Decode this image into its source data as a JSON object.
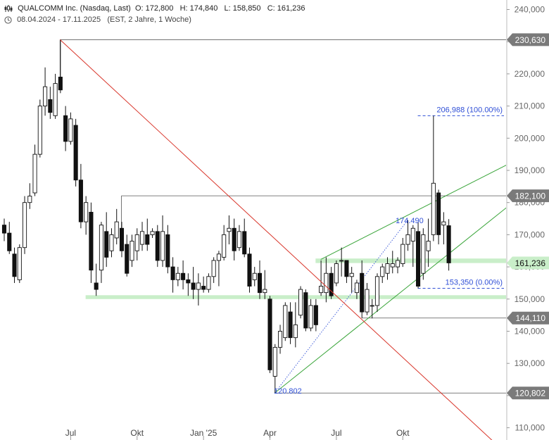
{
  "header": {
    "symbol": "QUALCOMM Inc. (Nasdaq, Last)",
    "ohlc": "O: 172,800   H: 174,840   L: 158,850   C: 161,236",
    "period": "08.04.2024 - 17.11.2025",
    "meta": "(EST, 2 Jahre, 1 Woche)"
  },
  "chart_data": {
    "type": "candlestick",
    "ylim": [
      105000,
      245000
    ],
    "y_ticks": [
      {
        "value": 240000,
        "label": "240,000"
      },
      {
        "value": 230000,
        "label": "230,000"
      },
      {
        "value": 220000,
        "label": "220,000"
      },
      {
        "value": 210000,
        "label": "210,000"
      },
      {
        "value": 200000,
        "label": "200,000"
      },
      {
        "value": 190000,
        "label": "190,000"
      },
      {
        "value": 180000,
        "label": "180,000"
      },
      {
        "value": 170000,
        "label": "170,000"
      },
      {
        "value": 160000,
        "label": "160,000"
      },
      {
        "value": 150000,
        "label": "150,000"
      },
      {
        "value": 140000,
        "label": "140,000"
      },
      {
        "value": 130000,
        "label": "130,000"
      },
      {
        "value": 120000,
        "label": "120,000"
      },
      {
        "value": 110000,
        "label": "110,000"
      }
    ],
    "x_ticks": [
      {
        "week": 13,
        "label": "Jul"
      },
      {
        "week": 26,
        "label": "Okt"
      },
      {
        "week": 39,
        "label": "Jan '25"
      },
      {
        "week": 52,
        "label": "Apr"
      },
      {
        "week": 65,
        "label": "Jul"
      },
      {
        "week": 78,
        "label": "Okt"
      }
    ],
    "n_weeks": 100,
    "candles": [
      {
        "o": 173000,
        "h": 175000,
        "l": 168000,
        "c": 170500
      },
      {
        "o": 170500,
        "h": 174000,
        "l": 164000,
        "c": 165000
      },
      {
        "o": 164000,
        "h": 166000,
        "l": 155000,
        "c": 157000
      },
      {
        "o": 156000,
        "h": 167000,
        "l": 155000,
        "c": 166000
      },
      {
        "o": 166000,
        "h": 182000,
        "l": 164000,
        "c": 180000
      },
      {
        "o": 180000,
        "h": 186000,
        "l": 178000,
        "c": 182000
      },
      {
        "o": 183000,
        "h": 198000,
        "l": 182000,
        "c": 195000
      },
      {
        "o": 195000,
        "h": 212000,
        "l": 194000,
        "c": 210000
      },
      {
        "o": 210000,
        "h": 222000,
        "l": 207000,
        "c": 216000
      },
      {
        "o": 212000,
        "h": 216000,
        "l": 206000,
        "c": 208000
      },
      {
        "o": 207000,
        "h": 220000,
        "l": 206000,
        "c": 217000
      },
      {
        "o": 219000,
        "h": 230630,
        "l": 214000,
        "c": 215000
      },
      {
        "o": 207000,
        "h": 210000,
        "l": 196000,
        "c": 199000
      },
      {
        "o": 199000,
        "h": 208000,
        "l": 198000,
        "c": 206000
      },
      {
        "o": 204000,
        "h": 206000,
        "l": 185000,
        "c": 187000
      },
      {
        "o": 187000,
        "h": 192000,
        "l": 172000,
        "c": 174000
      },
      {
        "o": 174000,
        "h": 182000,
        "l": 170000,
        "c": 180000
      },
      {
        "o": 177000,
        "h": 180000,
        "l": 155000,
        "c": 159000
      },
      {
        "o": 155000,
        "h": 161000,
        "l": 151000,
        "c": 153000
      },
      {
        "o": 159000,
        "h": 174000,
        "l": 155000,
        "c": 173000
      },
      {
        "o": 171000,
        "h": 177000,
        "l": 160000,
        "c": 163000
      },
      {
        "o": 165000,
        "h": 172000,
        "l": 163000,
        "c": 170000
      },
      {
        "o": 169000,
        "h": 178000,
        "l": 167000,
        "c": 174000
      },
      {
        "o": 172000,
        "h": 174000,
        "l": 163000,
        "c": 165000
      },
      {
        "o": 167000,
        "h": 170000,
        "l": 157000,
        "c": 158000
      },
      {
        "o": 162000,
        "h": 170000,
        "l": 160000,
        "c": 168000
      },
      {
        "o": 165000,
        "h": 172000,
        "l": 162000,
        "c": 170000
      },
      {
        "o": 167000,
        "h": 174000,
        "l": 165000,
        "c": 171000
      },
      {
        "o": 170000,
        "h": 175000,
        "l": 165000,
        "c": 167000
      },
      {
        "o": 170000,
        "h": 172000,
        "l": 169000,
        "c": 171000
      },
      {
        "o": 171000,
        "h": 173000,
        "l": 160000,
        "c": 162000
      },
      {
        "o": 162000,
        "h": 176000,
        "l": 160000,
        "c": 171000
      },
      {
        "o": 170000,
        "h": 173000,
        "l": 158000,
        "c": 160000
      },
      {
        "o": 160000,
        "h": 163000,
        "l": 152000,
        "c": 156000
      },
      {
        "o": 156000,
        "h": 160000,
        "l": 154000,
        "c": 158000
      },
      {
        "o": 158000,
        "h": 162000,
        "l": 153000,
        "c": 156000
      },
      {
        "o": 156000,
        "h": 158000,
        "l": 151000,
        "c": 155000
      },
      {
        "o": 155000,
        "h": 160000,
        "l": 150000,
        "c": 153000
      },
      {
        "o": 153000,
        "h": 158000,
        "l": 148000,
        "c": 155000
      },
      {
        "o": 154000,
        "h": 157000,
        "l": 152000,
        "c": 153000
      },
      {
        "o": 153000,
        "h": 158000,
        "l": 152000,
        "c": 157000
      },
      {
        "o": 157000,
        "h": 163000,
        "l": 155000,
        "c": 162000
      },
      {
        "o": 162000,
        "h": 165000,
        "l": 154000,
        "c": 164000
      },
      {
        "o": 163000,
        "h": 173000,
        "l": 162000,
        "c": 170000
      },
      {
        "o": 171000,
        "h": 176000,
        "l": 167000,
        "c": 172000
      },
      {
        "o": 172000,
        "h": 175000,
        "l": 162000,
        "c": 165000
      },
      {
        "o": 166000,
        "h": 173000,
        "l": 165000,
        "c": 171000
      },
      {
        "o": 171000,
        "h": 175000,
        "l": 163000,
        "c": 164000
      },
      {
        "o": 164000,
        "h": 166000,
        "l": 152000,
        "c": 154000
      },
      {
        "o": 156000,
        "h": 160000,
        "l": 154000,
        "c": 158000
      },
      {
        "o": 158000,
        "h": 162000,
        "l": 150000,
        "c": 152000
      },
      {
        "o": 152000,
        "h": 159000,
        "l": 150000,
        "c": 153000
      },
      {
        "o": 150000,
        "h": 151000,
        "l": 127000,
        "c": 128000
      },
      {
        "o": 126000,
        "h": 136000,
        "l": 120802,
        "c": 135000
      },
      {
        "o": 135000,
        "h": 142000,
        "l": 133000,
        "c": 140000
      },
      {
        "o": 138000,
        "h": 149000,
        "l": 137000,
        "c": 148000
      },
      {
        "o": 146000,
        "h": 149000,
        "l": 136000,
        "c": 138000
      },
      {
        "o": 138000,
        "h": 149000,
        "l": 135000,
        "c": 142000
      },
      {
        "o": 145000,
        "h": 154000,
        "l": 144000,
        "c": 153000
      },
      {
        "o": 152000,
        "h": 153000,
        "l": 140000,
        "c": 141000
      },
      {
        "o": 141000,
        "h": 150000,
        "l": 140000,
        "c": 148000
      },
      {
        "o": 148000,
        "h": 150000,
        "l": 140000,
        "c": 142000
      },
      {
        "o": 152000,
        "h": 162000,
        "l": 151000,
        "c": 154000
      },
      {
        "o": 152000,
        "h": 163000,
        "l": 149000,
        "c": 158000
      },
      {
        "o": 158000,
        "h": 160000,
        "l": 150000,
        "c": 151000
      },
      {
        "o": 155000,
        "h": 162000,
        "l": 154000,
        "c": 161000
      },
      {
        "o": 162000,
        "h": 166000,
        "l": 157000,
        "c": 162000
      },
      {
        "o": 162000,
        "h": 162000,
        "l": 155000,
        "c": 157000
      },
      {
        "o": 157000,
        "h": 160000,
        "l": 152000,
        "c": 158000
      },
      {
        "o": 152000,
        "h": 156000,
        "l": 150000,
        "c": 155000
      },
      {
        "o": 158000,
        "h": 162000,
        "l": 144110,
        "c": 146000
      },
      {
        "o": 146000,
        "h": 155000,
        "l": 145000,
        "c": 153000
      },
      {
        "o": 148000,
        "h": 150000,
        "l": 144000,
        "c": 148000
      },
      {
        "o": 148000,
        "h": 158000,
        "l": 146000,
        "c": 157000
      },
      {
        "o": 157000,
        "h": 161000,
        "l": 155000,
        "c": 160000
      },
      {
        "o": 158000,
        "h": 163000,
        "l": 156000,
        "c": 161000
      },
      {
        "o": 160000,
        "h": 165000,
        "l": 158000,
        "c": 161000
      },
      {
        "o": 160000,
        "h": 163000,
        "l": 158000,
        "c": 162000
      },
      {
        "o": 161000,
        "h": 169000,
        "l": 160000,
        "c": 167000
      },
      {
        "o": 167000,
        "h": 174490,
        "l": 165000,
        "c": 170000
      },
      {
        "o": 168000,
        "h": 173000,
        "l": 160000,
        "c": 172000
      },
      {
        "o": 171000,
        "h": 174000,
        "l": 153350,
        "c": 154000
      },
      {
        "o": 158000,
        "h": 172000,
        "l": 156000,
        "c": 170000
      },
      {
        "o": 165000,
        "h": 175000,
        "l": 160000,
        "c": 168000
      },
      {
        "o": 170000,
        "h": 206988,
        "l": 168000,
        "c": 186000
      },
      {
        "o": 183000,
        "h": 184000,
        "l": 167000,
        "c": 170000
      },
      {
        "o": 173000,
        "h": 177000,
        "l": 167000,
        "c": 174000
      },
      {
        "o": 172800,
        "h": 174840,
        "l": 158850,
        "c": 161236
      }
    ],
    "support_zones": [
      {
        "low": 150000,
        "high": 151200
      },
      {
        "low": 161200,
        "high": 162600
      }
    ],
    "price_levels": [
      {
        "value": 230630,
        "label": "230,630",
        "from_week": 11
      },
      {
        "value": 182100,
        "label": "182,100",
        "from_week": 23
      },
      {
        "value": 144110,
        "label": "144,110",
        "from_week": 70
      },
      {
        "value": 120802,
        "label": "120,802",
        "from_week": 53
      }
    ],
    "last_price": {
      "value": 161236,
      "label": "161,236"
    },
    "downtrend_line": {
      "from": {
        "week": 11,
        "value": 230630
      },
      "to": {
        "week": 99,
        "value": 101000
      }
    },
    "up_channel": {
      "lower": {
        "from": {
          "week": 53,
          "value": 120802
        },
        "to": {
          "week": 100,
          "value": 180500
        }
      },
      "upper": {
        "from": {
          "week": 62,
          "value": 162300
        },
        "to": {
          "week": 100,
          "value": 193000
        }
      }
    },
    "fibo_dotted": {
      "from": {
        "week": 53,
        "value": 120802
      },
      "to": {
        "week": 79,
        "value": 174490
      }
    },
    "fibo_levels": [
      {
        "value": 206988,
        "label": "206,988 (100.00%)",
        "from_week": 81
      },
      {
        "value": 153350,
        "label": "153,350 (0.00%)",
        "from_week": 81
      }
    ],
    "annotations": [
      {
        "label": "174.490",
        "week": 80,
        "value": 174490
      },
      {
        "label": "120.802",
        "week": 54,
        "value": 120802
      }
    ]
  }
}
